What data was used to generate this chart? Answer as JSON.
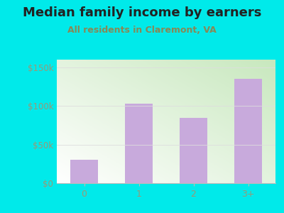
{
  "categories": [
    "0",
    "1",
    "2",
    "3+"
  ],
  "values": [
    30000,
    103000,
    85000,
    135000
  ],
  "bar_color": "#c8aadc",
  "title": "Median family income by earners",
  "subtitle": "All residents in Claremont, VA",
  "title_color": "#222222",
  "subtitle_color": "#888855",
  "outer_bg_color": "#00eaea",
  "grad_color_topleft": "#d4edcc",
  "grad_color_bottomright": "#f8fff8",
  "grad_color_white": "#ffffff",
  "ytick_labels": [
    "$0",
    "$50k",
    "$100k",
    "$150k"
  ],
  "ytick_values": [
    0,
    50000,
    100000,
    150000
  ],
  "ylim": [
    0,
    160000
  ],
  "title_fontsize": 13,
  "subtitle_fontsize": 9,
  "tick_label_color": "#999977",
  "axis_color": "#bbbbbb",
  "grid_color": "#dddddd"
}
